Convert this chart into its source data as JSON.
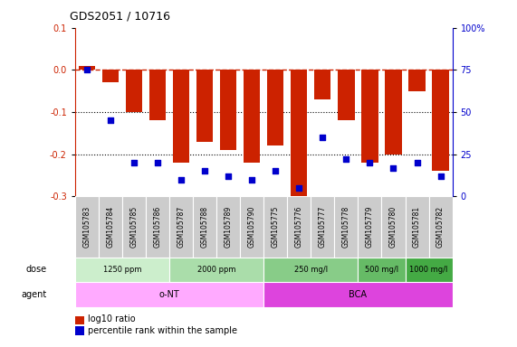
{
  "title": "GDS2051 / 10716",
  "samples": [
    "GSM105783",
    "GSM105784",
    "GSM105785",
    "GSM105786",
    "GSM105787",
    "GSM105788",
    "GSM105789",
    "GSM105790",
    "GSM105775",
    "GSM105776",
    "GSM105777",
    "GSM105778",
    "GSM105779",
    "GSM105780",
    "GSM105781",
    "GSM105782"
  ],
  "log10_ratio": [
    0.01,
    -0.03,
    -0.1,
    -0.12,
    -0.22,
    -0.17,
    -0.19,
    -0.22,
    -0.18,
    -0.3,
    -0.07,
    -0.12,
    -0.22,
    -0.2,
    -0.05,
    -0.24
  ],
  "percentile_rank": [
    75,
    45,
    20,
    20,
    10,
    15,
    12,
    10,
    15,
    5,
    35,
    22,
    20,
    17,
    20,
    12
  ],
  "ylim_left": [
    -0.3,
    0.1
  ],
  "ylim_right": [
    0,
    100
  ],
  "yticks_left": [
    -0.3,
    -0.2,
    -0.1,
    0.0,
    0.1
  ],
  "yticks_right": [
    0,
    25,
    50,
    75,
    100
  ],
  "ytick_labels_right": [
    "0",
    "25",
    "50",
    "75",
    "100%"
  ],
  "dotted_lines": [
    -0.1,
    -0.2
  ],
  "bar_color": "#cc2200",
  "dot_color": "#0000cc",
  "dose_groups": [
    {
      "label": "1250 ppm",
      "start": 0,
      "end": 4,
      "color": "#cceecc"
    },
    {
      "label": "2000 ppm",
      "start": 4,
      "end": 8,
      "color": "#aaddaa"
    },
    {
      "label": "250 mg/l",
      "start": 8,
      "end": 12,
      "color": "#88cc88"
    },
    {
      "label": "500 mg/l",
      "start": 12,
      "end": 14,
      "color": "#66bb66"
    },
    {
      "label": "1000 mg/l",
      "start": 14,
      "end": 16,
      "color": "#44aa44"
    }
  ],
  "agent_groups": [
    {
      "label": "o-NT",
      "start": 0,
      "end": 8,
      "color": "#ffaaff"
    },
    {
      "label": "BCA",
      "start": 8,
      "end": 16,
      "color": "#dd44dd"
    }
  ],
  "legend_items": [
    {
      "label": "log10 ratio",
      "color": "#cc2200"
    },
    {
      "label": "percentile rank within the sample",
      "color": "#0000cc"
    }
  ],
  "sample_row_color": "#cccccc",
  "dose_label": "dose",
  "agent_label": "agent"
}
